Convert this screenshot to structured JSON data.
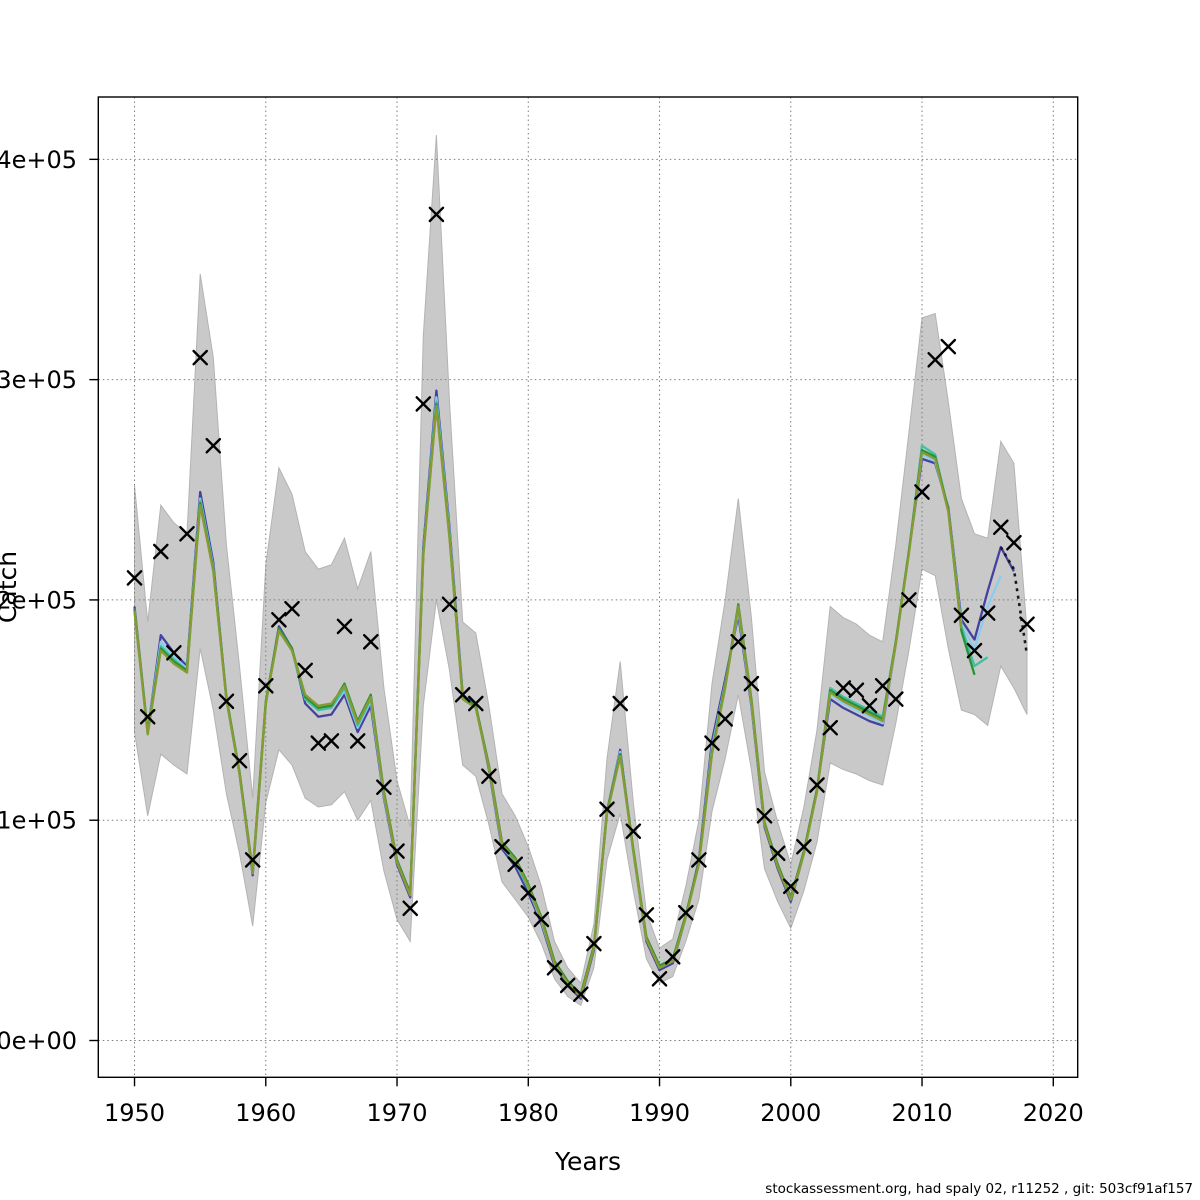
{
  "figure": {
    "footer": "stockassessment.org, had spaly 02, r11252 , git: 503cf91af157"
  },
  "chart_data": {
    "type": "line",
    "title": "",
    "xlabel": "Years",
    "ylabel": "Catch",
    "legend": "none",
    "grid": "dotted",
    "background": "#ffffff",
    "xlim": [
      1947.24,
      2021.86
    ],
    "ylim": [
      -16700,
      428300
    ],
    "x_ticks": {
      "values": [
        1950,
        1960,
        1970,
        1980,
        1990,
        2000,
        2010,
        2020
      ],
      "labels": [
        "1950",
        "1960",
        "1970",
        "1980",
        "1990",
        "2000",
        "2010",
        "2020"
      ]
    },
    "y_ticks": {
      "values": [
        0,
        100000,
        200000,
        300000,
        400000
      ],
      "labels": [
        "0e+00",
        "1e+05",
        "2e+05",
        "3e+05",
        "4e+05"
      ]
    },
    "units_note": "series values stored in thousands of tonnes",
    "value_scale": 1000,
    "band": {
      "name": "confidence-band",
      "fill": "#c9c9c9",
      "stroke": "#b3b3b3",
      "start_year": 1950,
      "lower": [
        140,
        102,
        130,
        125,
        121,
        178,
        150,
        112,
        85,
        52,
        108,
        132,
        125,
        110,
        106,
        107,
        113,
        100,
        109,
        77,
        55,
        45,
        152,
        200,
        168,
        125,
        120,
        98,
        72,
        64,
        56,
        44,
        28,
        20,
        16,
        33,
        82,
        103,
        68,
        37,
        26,
        29,
        45,
        64,
        104,
        128,
        157,
        123,
        78,
        63,
        51,
        68,
        90,
        126,
        123,
        121,
        118,
        116,
        144,
        177,
        214,
        211,
        178,
        150,
        148,
        143,
        170,
        160,
        148
      ],
      "upper": [
        252,
        190,
        243,
        235,
        230,
        348,
        310,
        225,
        170,
        110,
        216,
        260,
        248,
        222,
        214,
        216,
        228,
        205,
        222,
        160,
        118,
        97,
        320,
        411,
        290,
        190,
        185,
        152,
        112,
        102,
        88,
        70,
        45,
        33,
        26,
        53,
        128,
        172,
        108,
        58,
        42,
        46,
        70,
        100,
        162,
        200,
        246,
        192,
        122,
        99,
        80,
        106,
        141,
        197,
        192,
        189,
        184,
        181,
        225,
        276,
        328,
        330,
        290,
        246,
        230,
        228,
        272,
        262,
        186
      ]
    },
    "runs": [
      {
        "name": "fit-run-2017",
        "color": "#4541a0",
        "start_year": 1950,
        "values": [
          197,
          140,
          184,
          176,
          170,
          249,
          217,
          155,
          121,
          75,
          153,
          188,
          178,
          153,
          147,
          148,
          157,
          140,
          152,
          110,
          80,
          65,
          224,
          295,
          233,
          157,
          152,
          123,
          87,
          79,
          67,
          53,
          34,
          25,
          19,
          41,
          104,
          132,
          86,
          45,
          32,
          35,
          56,
          82,
          136,
          164,
          193,
          152,
          97,
          78,
          63,
          85,
          114,
          155,
          151,
          148,
          145,
          143,
          180,
          222,
          264,
          262,
          242,
          191,
          182,
          204,
          224,
          213
        ]
      },
      {
        "name": "fit-run-2016",
        "color": "#8ccdee",
        "start_year": 1950,
        "values": [
          196,
          140,
          181,
          174,
          169,
          246,
          215,
          155,
          121,
          76,
          153,
          187,
          178,
          155,
          150,
          151,
          159,
          142,
          154,
          111,
          81,
          66,
          222,
          292,
          231,
          156,
          152,
          124,
          88,
          81,
          69,
          54,
          35,
          26,
          20,
          42,
          104,
          131,
          86,
          46,
          33,
          36,
          56,
          81,
          133,
          162,
          195,
          153,
          98,
          79,
          64,
          85,
          114,
          157,
          153,
          150,
          147,
          144,
          180,
          222,
          266,
          263,
          241,
          189,
          178,
          197,
          211
        ]
      },
      {
        "name": "fit-run-2015",
        "color": "#44bfa3",
        "start_year": 1950,
        "values": [
          195,
          139,
          179,
          173,
          168,
          245,
          214,
          155,
          121,
          76,
          153,
          186,
          177,
          155,
          150,
          151,
          160,
          143,
          155,
          112,
          81,
          66,
          221,
          290,
          229,
          155,
          151,
          124,
          89,
          81,
          69,
          55,
          35,
          26,
          20,
          42,
          103,
          130,
          86,
          46,
          33,
          36,
          56,
          80,
          131,
          161,
          196,
          154,
          98,
          79,
          64,
          85,
          113,
          160,
          156,
          153,
          150,
          147,
          181,
          222,
          270,
          266,
          241,
          188,
          170,
          174
        ]
      },
      {
        "name": "fit-run-2014",
        "color": "#2a9134",
        "start_year": 1950,
        "values": [
          196,
          140,
          178,
          172,
          168,
          244,
          214,
          156,
          122,
          77,
          154,
          187,
          178,
          156,
          151,
          152,
          162,
          145,
          157,
          113,
          82,
          67,
          221,
          289,
          229,
          156,
          152,
          125,
          90,
          83,
          71,
          56,
          36,
          27,
          21,
          43,
          104,
          130,
          87,
          47,
          34,
          37,
          57,
          81,
          131,
          161,
          198,
          155,
          99,
          80,
          65,
          86,
          114,
          159,
          155,
          152,
          149,
          146,
          181,
          222,
          268,
          265,
          241,
          186,
          166
        ]
      },
      {
        "name": "fit-run-2013",
        "color": "#8a9a32",
        "start_year": 1950,
        "values": [
          195,
          139,
          177,
          171,
          167,
          243,
          213,
          155,
          121,
          76,
          153,
          186,
          177,
          157,
          152,
          153,
          161,
          144,
          156,
          112,
          81,
          66,
          220,
          288,
          228,
          155,
          151,
          124,
          89,
          82,
          70,
          55,
          35,
          26,
          20,
          42,
          103,
          129,
          86,
          46,
          33,
          36,
          56,
          80,
          130,
          160,
          197,
          154,
          98,
          79,
          64,
          85,
          113,
          158,
          154,
          151,
          148,
          145,
          180,
          221,
          267,
          264,
          240,
          187
        ]
      }
    ],
    "forecast": {
      "name": "forecast-line",
      "color": "#1a1a1a",
      "style": "dashed",
      "years": [
        2016,
        2017,
        2018
      ],
      "values": [
        224,
        214,
        175
      ]
    },
    "observed": {
      "name": "observed-catch-marks",
      "marker": "x",
      "color": "#000000",
      "start_year": 1950,
      "values": [
        210,
        147,
        222,
        176,
        230,
        310,
        270,
        154,
        127,
        82,
        161,
        191,
        196,
        168,
        135,
        136,
        188,
        136,
        181,
        115,
        86,
        60,
        289,
        375,
        198,
        157,
        153,
        120,
        88,
        80,
        67,
        55,
        33,
        25,
        21,
        44,
        105,
        153,
        95,
        57,
        28,
        38,
        58,
        82,
        135,
        146,
        181,
        162,
        102,
        85,
        70,
        88,
        116,
        142,
        160,
        159,
        152,
        161,
        155,
        200,
        249,
        309,
        315,
        193,
        177,
        194,
        233,
        226,
        189
      ]
    }
  }
}
